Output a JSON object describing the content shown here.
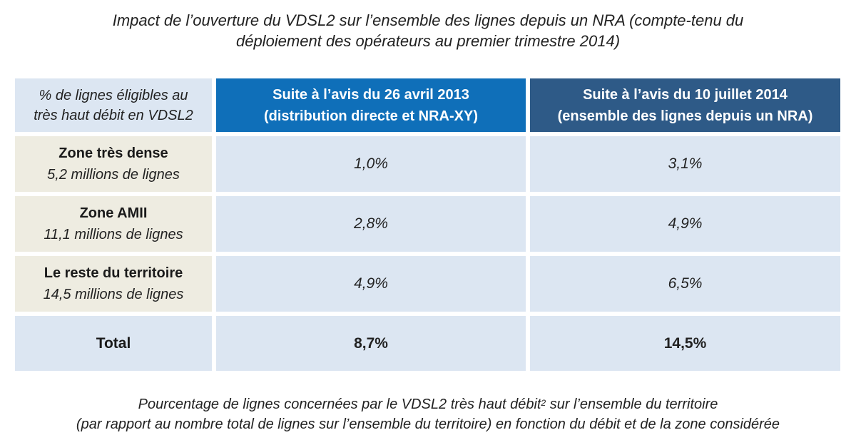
{
  "title": {
    "line1": "Impact de l’ouverture du VDSL2 sur l’ensemble des lignes depuis un NRA (compte-tenu du",
    "line2": "déploiement des opérateurs au premier trimestre 2014)"
  },
  "table": {
    "corner": {
      "line1": "% de lignes éligibles au",
      "line2": "très haut débit en VDSL2"
    },
    "headers": [
      {
        "line1": "Suite à l’avis du 26 avril 2013",
        "line2": "(distribution directe et NRA-XY)"
      },
      {
        "line1": "Suite à l’avis du 10 juillet 2014",
        "line2": "(ensemble des lignes depuis un NRA)"
      }
    ],
    "rows": [
      {
        "name": "Zone très dense",
        "sub": "5,2 millions de lignes",
        "v2013": "1,0%",
        "v2014": "3,1%"
      },
      {
        "name": "Zone AMII",
        "sub": "11,1 millions de lignes",
        "v2013": "2,8%",
        "v2014": "4,9%"
      },
      {
        "name": "Le reste du territoire",
        "sub": "14,5 millions de lignes",
        "v2013": "4,9%",
        "v2014": "6,5%"
      }
    ],
    "total": {
      "name": "Total",
      "v2013": "8,7%",
      "v2014": "14,5%"
    }
  },
  "caption": {
    "line1_before": "Pourcentage de lignes concernées par le VDSL2 très haut débit",
    "footnote": "2",
    "line1_after": " sur l’ensemble du territoire",
    "line2": "(par rapport au nombre total de lignes sur l’ensemble du territoire) en fonction du débit et de la zone considérée"
  },
  "colors": {
    "header_2013": "#0f6fb9",
    "header_2014": "#2e5a87",
    "value_cell": "#dce6f2",
    "label_cell": "#eeece1"
  }
}
